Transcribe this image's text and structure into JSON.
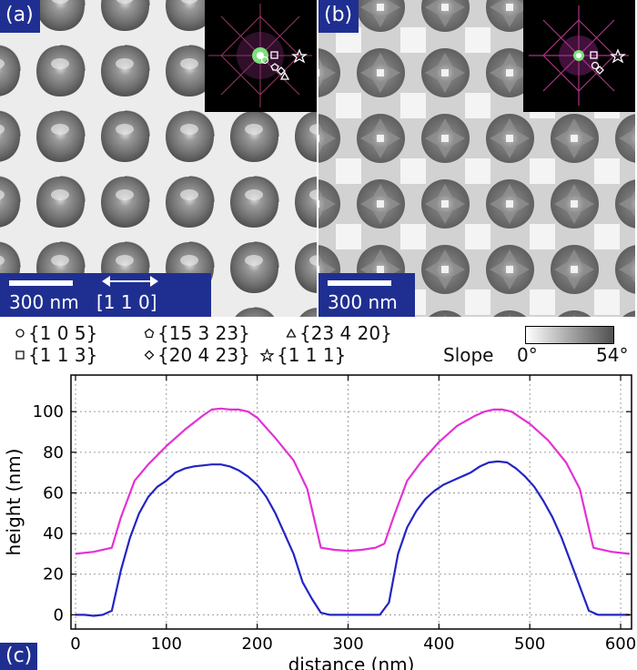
{
  "panels": [
    {
      "label": "(a)",
      "scale_text": "300 nm",
      "direction_text": "[1 1 0]"
    },
    {
      "label": "(b)",
      "scale_text": "300 nm"
    }
  ],
  "legend": {
    "items": [
      {
        "shape": "circle",
        "text": "{1 0 5}"
      },
      {
        "shape": "pentagon",
        "text": "{15 3 23}"
      },
      {
        "shape": "triangle",
        "text": "{23 4 20}"
      },
      {
        "shape": "square",
        "text": "{1 1 3}"
      },
      {
        "shape": "diamond",
        "text": "{20 4 23}"
      },
      {
        "shape": "star",
        "text": "{1 1 1}"
      }
    ],
    "slope_label": "Slope",
    "slope_min": "0°",
    "slope_max": "54°"
  },
  "chart_label": "(c)",
  "chart_data": {
    "type": "line",
    "xlabel": "distance (nm)",
    "ylabel": "height (nm)",
    "xlim": [
      -5,
      612
    ],
    "ylim": [
      -7,
      118
    ],
    "xticks": [
      0,
      100,
      200,
      300,
      400,
      500,
      600
    ],
    "yticks": [
      0,
      20,
      40,
      60,
      80,
      100
    ],
    "grid": true,
    "series": [
      {
        "color": "#e331d6",
        "x": [
          0,
          20,
          40,
          50,
          65,
          80,
          100,
          120,
          140,
          150,
          160,
          170,
          180,
          190,
          200,
          220,
          240,
          255,
          270,
          285,
          300,
          315,
          330,
          340,
          350,
          365,
          380,
          400,
          420,
          440,
          450,
          460,
          470,
          480,
          490,
          500,
          520,
          540,
          555,
          570,
          590,
          610
        ],
        "y": [
          30,
          31,
          33,
          48,
          66,
          74,
          83,
          91,
          98,
          101,
          101.5,
          101,
          101,
          100,
          97,
          87,
          76,
          62,
          33,
          32,
          31.5,
          32,
          33,
          35,
          48,
          66,
          75,
          85,
          93,
          98,
          100,
          101,
          101,
          100,
          97,
          94,
          86,
          75,
          62,
          33,
          31,
          30
        ]
      },
      {
        "color": "#2424c4",
        "x": [
          0,
          10,
          20,
          30,
          40,
          50,
          60,
          70,
          80,
          90,
          100,
          110,
          120,
          130,
          140,
          150,
          160,
          170,
          180,
          190,
          200,
          210,
          220,
          230,
          240,
          250,
          260,
          270,
          280,
          300,
          320,
          335,
          345,
          355,
          365,
          375,
          385,
          395,
          405,
          420,
          435,
          445,
          455,
          465,
          475,
          485,
          495,
          505,
          515,
          525,
          535,
          545,
          555,
          565,
          575,
          590,
          610
        ],
        "y": [
          0,
          0,
          -0.5,
          0,
          2,
          22,
          38,
          50,
          58,
          63,
          66,
          70,
          72,
          73,
          73.5,
          74,
          74,
          73,
          71,
          68,
          64,
          58,
          50,
          40,
          30,
          16,
          8,
          1,
          0,
          0,
          0,
          0,
          6,
          30,
          43,
          51,
          57,
          61,
          64,
          67,
          70,
          73,
          75,
          75.5,
          75,
          72,
          68,
          63,
          56,
          48,
          38,
          26,
          14,
          2,
          0,
          0,
          0
        ]
      }
    ]
  }
}
